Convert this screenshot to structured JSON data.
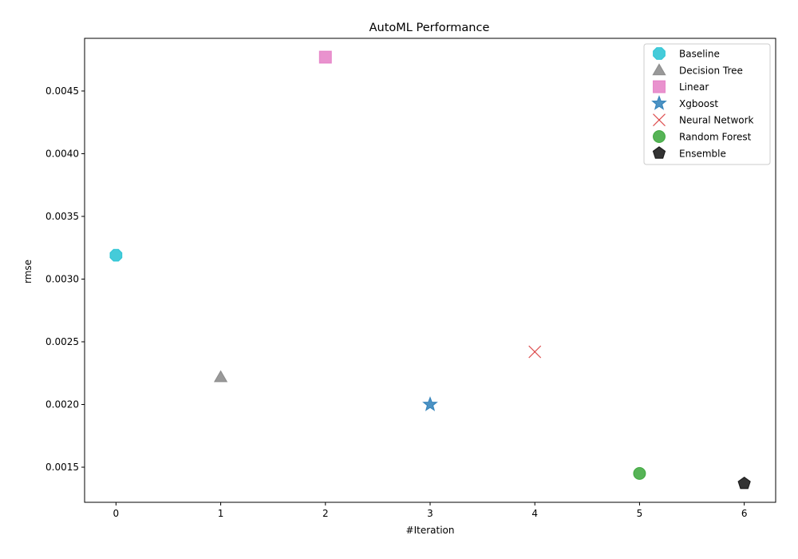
{
  "chart_data": {
    "type": "scatter",
    "title": "AutoML Performance",
    "xlabel": "#Iteration",
    "ylabel": "rmse",
    "xlim": [
      -0.3,
      6.3
    ],
    "ylim": [
      0.00122,
      0.00492
    ],
    "xticks": [
      0,
      1,
      2,
      3,
      4,
      5,
      6
    ],
    "xtick_labels": [
      "0",
      "1",
      "2",
      "3",
      "4",
      "5",
      "6"
    ],
    "yticks": [
      0.0015,
      0.002,
      0.0025,
      0.003,
      0.0035,
      0.004,
      0.0045
    ],
    "ytick_labels": [
      "0.0015",
      "0.0020",
      "0.0025",
      "0.0030",
      "0.0035",
      "0.0040",
      "0.0045"
    ],
    "grid": false,
    "legend_position": "top-right",
    "series": [
      {
        "name": "Baseline",
        "x": 0,
        "y": 0.00319,
        "marker": "octagon",
        "color": "#17becf"
      },
      {
        "name": "Decision Tree",
        "x": 1,
        "y": 0.00222,
        "marker": "triangle",
        "color": "#7f7f7f"
      },
      {
        "name": "Linear",
        "x": 2,
        "y": 0.00477,
        "marker": "square",
        "color": "#e377c2"
      },
      {
        "name": "Xgboost",
        "x": 3,
        "y": 0.002,
        "marker": "star",
        "color": "#1f77b4"
      },
      {
        "name": "Neural Network",
        "x": 4,
        "y": 0.00242,
        "marker": "x",
        "color": "#d62728"
      },
      {
        "name": "Random Forest",
        "x": 5,
        "y": 0.00145,
        "marker": "circle",
        "color": "#2ca02c"
      },
      {
        "name": "Ensemble",
        "x": 6,
        "y": 0.00137,
        "marker": "pentagon",
        "color": "#000000"
      }
    ]
  }
}
